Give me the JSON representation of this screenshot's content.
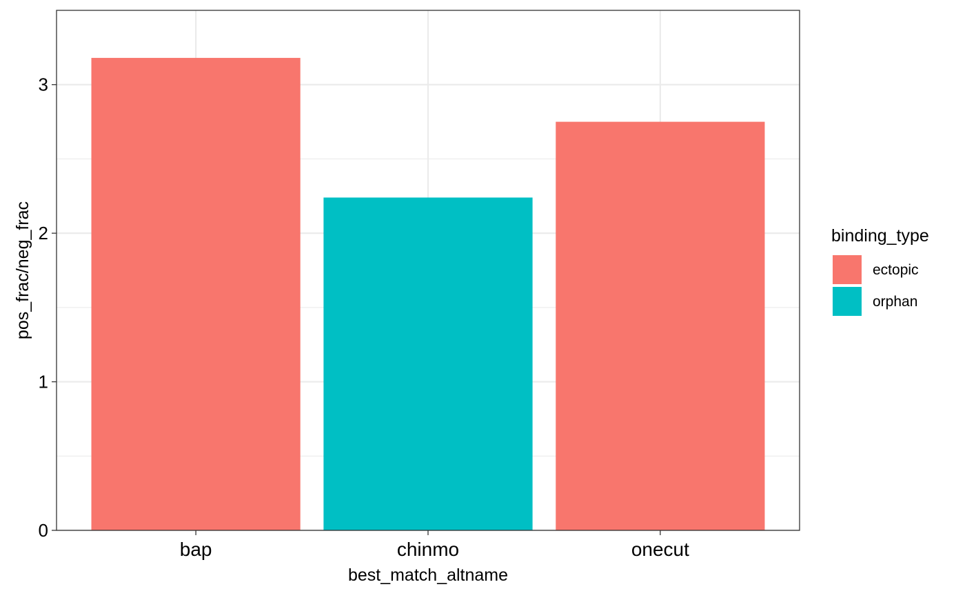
{
  "chart_data": {
    "type": "bar",
    "xlabel": "best_match_altname",
    "ylabel": "pos_frac/neg_frac",
    "categories": [
      "bap",
      "chinmo",
      "onecut"
    ],
    "values": [
      3.18,
      2.24,
      2.75
    ],
    "groups": [
      "ectopic",
      "orphan",
      "ectopic"
    ],
    "ylim": [
      0,
      3.5
    ],
    "yticks": [
      0,
      1,
      2,
      3
    ],
    "grid": true,
    "legend": {
      "title": "binding_type",
      "position": "right",
      "entries": [
        {
          "label": "ectopic",
          "color": "#F8766D"
        },
        {
          "label": "orphan",
          "color": "#00BFC4"
        }
      ]
    }
  }
}
